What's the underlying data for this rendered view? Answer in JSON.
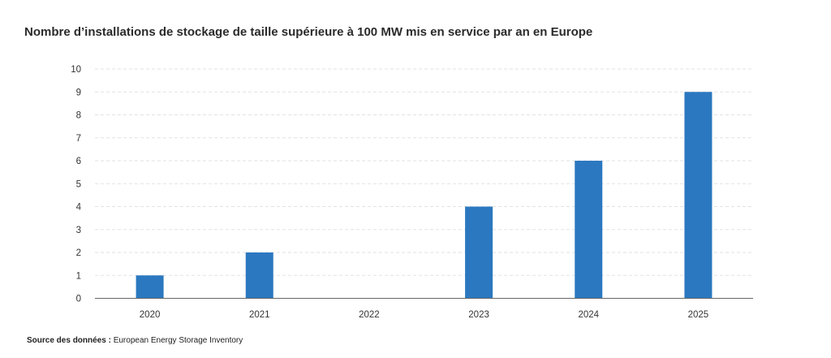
{
  "chart_data": {
    "type": "bar",
    "title": "Nombre d’installations de stockage de taille supérieure à 100 MW mis en service par an en Europe",
    "categories": [
      "2020",
      "2021",
      "2022",
      "2023",
      "2024",
      "2025"
    ],
    "values": [
      1,
      2,
      0,
      4,
      6,
      9
    ],
    "xlabel": "",
    "ylabel": "",
    "ylim": [
      0,
      10
    ],
    "yticks": [
      0,
      1,
      2,
      3,
      4,
      5,
      6,
      7,
      8,
      9,
      10
    ],
    "grid": true,
    "bar_color": "#2b78c0"
  },
  "source": {
    "label": "Source des données :",
    "text": "European Energy Storage Inventory"
  }
}
